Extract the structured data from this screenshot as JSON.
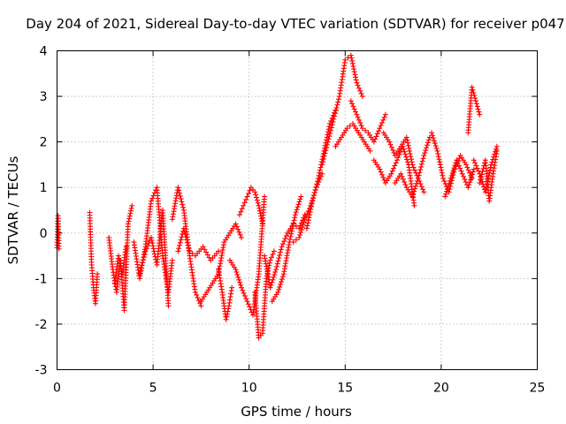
{
  "chart_data": {
    "type": "scatter",
    "title": "Day 204 of 2021, Sidereal Day-to-day VTEC variation (SDTVAR) for receiver p047",
    "xlabel": "GPS time / hours",
    "ylabel": "SDTVAR / TECUs",
    "xlim": [
      0,
      25
    ],
    "ylim": [
      -3,
      4
    ],
    "xticks": [
      0,
      5,
      10,
      15,
      20,
      25
    ],
    "yticks": [
      -3,
      -2,
      -1,
      0,
      1,
      2,
      3,
      4
    ],
    "x_tick_labels": [
      "0",
      "5",
      "10",
      "15",
      "20",
      "25"
    ],
    "y_tick_labels": [
      "-3",
      "-2",
      "-1",
      "0",
      "1",
      "2",
      "3",
      "4"
    ],
    "grid": true,
    "marker": "+",
    "series_color": "#ff0000",
    "series": [
      {
        "name": "SDTVAR",
        "segments": [
          {
            "x": [
              0.0,
              0.05,
              0.1
            ],
            "y": [
              -0.32,
              0.38,
              -0.35
            ]
          },
          {
            "x": [
              1.7,
              1.8,
              1.9,
              2.0,
              2.1
            ],
            "y": [
              0.45,
              -0.7,
              -1.2,
              -1.55,
              -0.9
            ]
          },
          {
            "x": [
              2.7,
              2.9,
              3.1,
              3.3,
              3.5,
              3.7,
              3.9
            ],
            "y": [
              -0.1,
              -0.8,
              -1.3,
              -0.6,
              -1.7,
              0.2,
              0.6
            ]
          },
          {
            "x": [
              3.0,
              3.2,
              3.4,
              3.6
            ],
            "y": [
              -1.1,
              -0.5,
              -0.9,
              -0.3
            ]
          },
          {
            "x": [
              4.0,
              4.3,
              4.6,
              4.9,
              5.2,
              5.5,
              5.8,
              6.0
            ],
            "y": [
              -0.2,
              -1.0,
              -0.3,
              0.7,
              1.0,
              -0.5,
              -1.3,
              -0.6
            ]
          },
          {
            "x": [
              4.3,
              4.6,
              4.9,
              5.2,
              5.5,
              5.8
            ],
            "y": [
              -0.9,
              -0.4,
              -0.1,
              -0.7,
              0.5,
              -1.6
            ]
          },
          {
            "x": [
              6.0,
              6.3,
              6.6,
              6.9,
              7.2,
              7.5
            ],
            "y": [
              0.3,
              1.0,
              0.5,
              -0.5,
              -1.3,
              -1.6
            ]
          },
          {
            "x": [
              6.3,
              6.6,
              6.9,
              7.2,
              7.6,
              8.0,
              8.4
            ],
            "y": [
              -0.4,
              0.1,
              -0.4,
              -0.5,
              -0.3,
              -0.6,
              -0.4
            ]
          },
          {
            "x": [
              7.5,
              7.8,
              8.1,
              8.4,
              8.7,
              9.0,
              9.3,
              9.6
            ],
            "y": [
              -1.5,
              -1.3,
              -1.1,
              -0.9,
              -0.2,
              0.0,
              0.2,
              -0.1
            ]
          },
          {
            "x": [
              8.4,
              8.6,
              8.8,
              8.95,
              9.1
            ],
            "y": [
              -0.8,
              -1.3,
              -1.9,
              -1.6,
              -1.2
            ]
          },
          {
            "x": [
              9.0,
              9.3,
              9.6,
              9.9,
              10.2,
              10.5,
              10.8
            ],
            "y": [
              -0.6,
              -0.8,
              -1.2,
              -1.5,
              -1.8,
              -0.9,
              0.8
            ]
          },
          {
            "x": [
              9.5,
              9.7,
              9.9,
              10.1,
              10.3,
              10.5,
              10.7
            ],
            "y": [
              0.4,
              0.6,
              0.8,
              1.0,
              0.9,
              0.6,
              0.2
            ]
          },
          {
            "x": [
              10.3,
              10.5,
              10.7,
              10.9,
              11.1,
              11.3
            ],
            "y": [
              -1.3,
              -2.3,
              -2.2,
              -1.0,
              -0.6,
              -0.4
            ]
          },
          {
            "x": [
              10.8,
              11.1,
              11.4,
              11.7,
              12.0,
              12.3,
              12.6,
              12.9
            ],
            "y": [
              -0.5,
              -1.2,
              -0.8,
              -0.3,
              0.0,
              0.2,
              0.1,
              0.4
            ]
          },
          {
            "x": [
              11.2,
              11.5,
              11.8,
              12.1,
              12.4,
              12.7
            ],
            "y": [
              -1.5,
              -1.3,
              -0.9,
              -0.2,
              0.4,
              0.8
            ]
          },
          {
            "x": [
              12.3,
              12.6,
              12.9,
              13.2,
              13.5,
              13.8
            ],
            "y": [
              -0.2,
              -0.1,
              0.3,
              0.6,
              1.0,
              1.3
            ]
          },
          {
            "x": [
              13.0,
              13.3,
              13.6,
              13.9,
              14.2,
              14.5
            ],
            "y": [
              0.1,
              0.7,
              1.2,
              1.8,
              2.4,
              2.7
            ]
          },
          {
            "x": [
              13.8,
              14.1,
              14.4,
              14.7,
              15.0,
              15.3,
              15.6,
              15.9
            ],
            "y": [
              1.5,
              2.0,
              2.5,
              3.0,
              3.8,
              3.9,
              3.3,
              3.0
            ]
          },
          {
            "x": [
              14.5,
              14.8,
              15.1,
              15.4,
              15.7,
              16.0,
              16.3
            ],
            "y": [
              1.9,
              2.1,
              2.3,
              2.4,
              2.2,
              2.0,
              1.8
            ]
          },
          {
            "x": [
              15.3,
              15.6,
              15.9,
              16.2,
              16.5,
              16.8,
              17.1
            ],
            "y": [
              2.9,
              2.6,
              2.3,
              2.2,
              2.0,
              2.3,
              2.6
            ]
          },
          {
            "x": [
              16.5,
              16.8,
              17.1,
              17.4,
              17.7,
              18.0,
              18.3,
              18.6
            ],
            "y": [
              1.6,
              1.4,
              1.1,
              1.3,
              1.6,
              1.9,
              1.5,
              0.6
            ]
          },
          {
            "x": [
              17.0,
              17.3,
              17.6,
              17.9,
              18.2,
              18.5,
              18.8,
              19.1,
              19.4
            ],
            "y": [
              2.2,
              2.0,
              1.7,
              1.9,
              2.1,
              1.5,
              1.2,
              1.7,
              2.1
            ]
          },
          {
            "x": [
              17.6,
              17.9,
              18.2,
              18.5,
              18.8,
              19.1
            ],
            "y": [
              1.1,
              1.3,
              1.0,
              0.8,
              1.2,
              0.9
            ]
          },
          {
            "x": [
              19.5,
              19.8,
              20.1,
              20.4,
              20.7,
              21.0,
              21.3,
              21.6
            ],
            "y": [
              2.2,
              1.8,
              1.2,
              0.9,
              1.4,
              1.7,
              1.5,
              1.2
            ]
          },
          {
            "x": [
              20.2,
              20.5,
              20.8,
              21.1,
              21.4,
              21.7
            ],
            "y": [
              0.8,
              1.2,
              1.6,
              1.3,
              1.0,
              1.4
            ]
          },
          {
            "x": [
              21.4,
              21.6,
              21.8,
              22.0
            ],
            "y": [
              2.2,
              3.2,
              2.9,
              2.6
            ]
          },
          {
            "x": [
              21.7,
              22.0,
              22.3,
              22.6,
              22.9
            ],
            "y": [
              1.6,
              1.3,
              0.9,
              1.5,
              1.9
            ]
          },
          {
            "x": [
              22.0,
              22.3,
              22.5,
              22.7,
              22.9
            ],
            "y": [
              1.1,
              1.6,
              0.7,
              1.3,
              1.8
            ]
          }
        ]
      }
    ]
  }
}
